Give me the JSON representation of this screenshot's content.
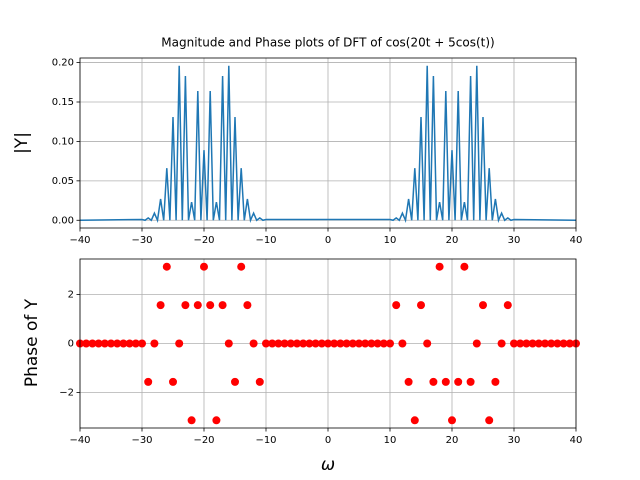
{
  "chart_data": [
    {
      "type": "line",
      "title": "Magnitude and Phase plots of DFT of cos(20t + 5cos(t))",
      "y_label": "|Y|",
      "color": "#1f77b4",
      "grid": true,
      "xlim": [
        -40,
        40
      ],
      "xticks": [
        {
          "value": -40,
          "label": "−40"
        },
        {
          "value": -30,
          "label": "−30"
        },
        {
          "value": -20,
          "label": "−20"
        },
        {
          "value": -10,
          "label": "−10"
        },
        0,
        10,
        20,
        30,
        40
      ],
      "ylim": [
        -0.0098,
        0.2058
      ],
      "yticks": [
        {
          "value": 0,
          "label": "0.00"
        },
        {
          "value": 0.05,
          "label": "0.05"
        },
        {
          "value": 0.1,
          "label": "0.10"
        },
        {
          "value": 0.15,
          "label": "0.15"
        },
        {
          "value": 0.2,
          "label": "0.20"
        }
      ],
      "x": [
        -40,
        -30,
        -29.5,
        -29,
        -28.5,
        -28,
        -27.5,
        -27,
        -26.5,
        -26,
        -25.5,
        -25,
        -24.5,
        -24,
        -23.5,
        -23,
        -22.5,
        -22,
        -21.5,
        -21,
        -20.5,
        -20,
        -19.5,
        -19,
        -18.5,
        -18,
        -17.5,
        -17,
        -16.5,
        -16,
        -15.5,
        -15,
        -14.5,
        -14,
        -13.5,
        -13,
        -12.5,
        -12,
        -11.5,
        -11,
        -10.5,
        -10,
        10,
        10.5,
        11,
        11.5,
        12,
        12.5,
        13,
        13.5,
        14,
        14.5,
        15,
        15.5,
        16,
        16.5,
        17,
        17.5,
        18,
        18.5,
        19,
        19.5,
        20,
        20.5,
        21,
        21.5,
        22,
        22.5,
        23,
        23.5,
        24,
        24.5,
        25,
        25.5,
        26,
        26.5,
        27,
        27.5,
        28,
        28.5,
        29,
        29.5,
        30,
        40
      ],
      "values": [
        0,
        0.001,
        0,
        0.003,
        0,
        0.009,
        0,
        0.027,
        0,
        0.066,
        0,
        0.131,
        0,
        0.196,
        0,
        0.183,
        0,
        0.023,
        0,
        0.164,
        0,
        0.089,
        0,
        0.164,
        0,
        0.023,
        0,
        0.183,
        0,
        0.196,
        0,
        0.131,
        0,
        0.066,
        0,
        0.027,
        0,
        0.009,
        0,
        0.003,
        0,
        0.001,
        0.001,
        0,
        0.003,
        0,
        0.009,
        0,
        0.027,
        0,
        0.066,
        0,
        0.131,
        0,
        0.196,
        0,
        0.183,
        0,
        0.023,
        0,
        0.164,
        0,
        0.089,
        0,
        0.164,
        0,
        0.023,
        0,
        0.183,
        0,
        0.196,
        0,
        0.131,
        0,
        0.066,
        0,
        0.027,
        0,
        0.009,
        0,
        0.003,
        0,
        0.001,
        0
      ]
    },
    {
      "type": "scatter",
      "x_label": "ω",
      "y_label": "Phase of Y",
      "color": "#ff0000",
      "grid": true,
      "xlim": [
        -40,
        40
      ],
      "xticks": [
        {
          "value": -40,
          "label": "−40"
        },
        {
          "value": -30,
          "label": "−30"
        },
        {
          "value": -20,
          "label": "−20"
        },
        {
          "value": -10,
          "label": "−10"
        },
        0,
        10,
        20,
        30,
        40
      ],
      "ylim": [
        -3.456,
        3.456
      ],
      "yticks": [
        {
          "value": -2,
          "label": "−2"
        },
        0,
        2
      ],
      "x": [
        -40,
        -39,
        -38,
        -37,
        -36,
        -35,
        -34,
        -33,
        -32,
        -31,
        -30,
        -29,
        -28,
        -27,
        -26,
        -25,
        -24,
        -23,
        -22,
        -21,
        -20,
        -19,
        -18,
        -17,
        -16,
        -15,
        -14,
        -13,
        -12,
        -11,
        -10,
        -9,
        -8,
        -7,
        -6,
        -5,
        -4,
        -3,
        -2,
        -1,
        0,
        1,
        2,
        3,
        4,
        5,
        6,
        7,
        8,
        9,
        10,
        11,
        12,
        13,
        14,
        15,
        16,
        17,
        18,
        19,
        20,
        21,
        22,
        23,
        24,
        25,
        26,
        27,
        28,
        29,
        30,
        31,
        32,
        33,
        34,
        35,
        36,
        37,
        38,
        39,
        40
      ],
      "values": [
        0,
        0,
        0,
        0,
        0,
        0,
        0,
        0,
        0,
        0,
        0,
        -1.57,
        0,
        1.57,
        3.14,
        -1.57,
        0,
        1.57,
        -3.14,
        1.57,
        3.14,
        1.57,
        -3.14,
        1.57,
        0,
        -1.57,
        3.14,
        1.57,
        0,
        -1.57,
        0,
        0,
        0,
        0,
        0,
        0,
        0,
        0,
        0,
        0,
        0,
        0,
        0,
        0,
        0,
        0,
        0,
        0,
        0,
        0,
        0,
        1.57,
        0,
        -1.57,
        -3.14,
        1.57,
        0,
        -1.57,
        3.14,
        -1.57,
        -3.14,
        -1.57,
        3.14,
        -1.57,
        0,
        1.57,
        -3.14,
        -1.57,
        0,
        1.57,
        0,
        0,
        0,
        0,
        0,
        0,
        0,
        0,
        0,
        0,
        0
      ]
    }
  ]
}
